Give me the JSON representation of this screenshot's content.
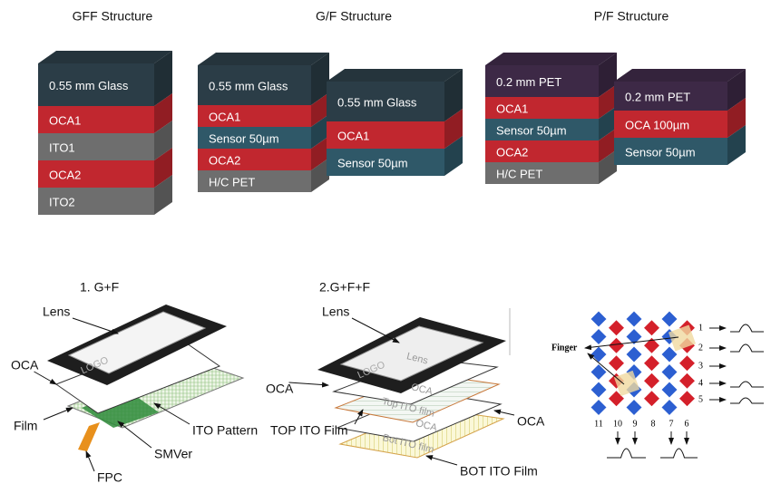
{
  "structures": [
    {
      "title": "GFF Structure",
      "stacks": [
        {
          "layers": [
            {
              "label": "0.55 mm Glass",
              "color": "#2b3d47"
            },
            {
              "label": "OCA1",
              "color": "#c1272f"
            },
            {
              "label": "ITO1",
              "color": "#6e6e6e"
            },
            {
              "label": "OCA2",
              "color": "#c1272f"
            },
            {
              "label": "ITO2",
              "color": "#6e6e6e"
            }
          ]
        }
      ]
    },
    {
      "title": "G/F Structure",
      "stacks": [
        {
          "layers": [
            {
              "label": "0.55 mm Glass",
              "color": "#2b3d47"
            },
            {
              "label": "OCA1",
              "color": "#c1272f"
            },
            {
              "label": "Sensor 50µm",
              "color": "#2f5868"
            },
            {
              "label": "OCA2",
              "color": "#c1272f"
            },
            {
              "label": "H/C PET",
              "color": "#6e6e6e"
            }
          ]
        },
        {
          "layers": [
            {
              "label": "0.55 mm Glass",
              "color": "#2b3d47"
            },
            {
              "label": "OCA1",
              "color": "#c1272f"
            },
            {
              "label": "Sensor 50µm",
              "color": "#2f5868"
            }
          ]
        }
      ]
    },
    {
      "title": "P/F Structure",
      "stacks": [
        {
          "layers": [
            {
              "label": "0.2 mm PET",
              "color": "#3d2946"
            },
            {
              "label": "OCA1",
              "color": "#c1272f"
            },
            {
              "label": "Sensor 50µm",
              "color": "#2f5868"
            },
            {
              "label": "OCA2",
              "color": "#c1272f"
            },
            {
              "label": "H/C PET",
              "color": "#6e6e6e"
            }
          ]
        },
        {
          "layers": [
            {
              "label": "0.2 mm PET",
              "color": "#3d2946"
            },
            {
              "label": "OCA 100µm",
              "color": "#c1272f"
            },
            {
              "label": "Sensor 50µm",
              "color": "#2f5868"
            }
          ]
        }
      ]
    }
  ],
  "exploded": [
    {
      "title": "1. G+F",
      "labels": [
        "Lens",
        "OCA",
        "Film",
        "ITO Pattern",
        "SMVer",
        "FPC"
      ],
      "logo": "LOGO"
    },
    {
      "title": "2.G+F+F",
      "labels": [
        "Lens",
        "OCA",
        "TOP ITO Film",
        "OCA",
        "BOT ITO Film"
      ],
      "logo": "LOGO",
      "layer_texts": [
        "Lens",
        "OCA",
        "Top ITO film",
        "OCA",
        "Bot ITO film"
      ]
    }
  ],
  "sensor": {
    "finger": "Finger",
    "rows": [
      "1",
      "2",
      "3",
      "4",
      "5"
    ],
    "columns": [
      "11",
      "10",
      "9",
      "8",
      "7",
      "6"
    ]
  }
}
